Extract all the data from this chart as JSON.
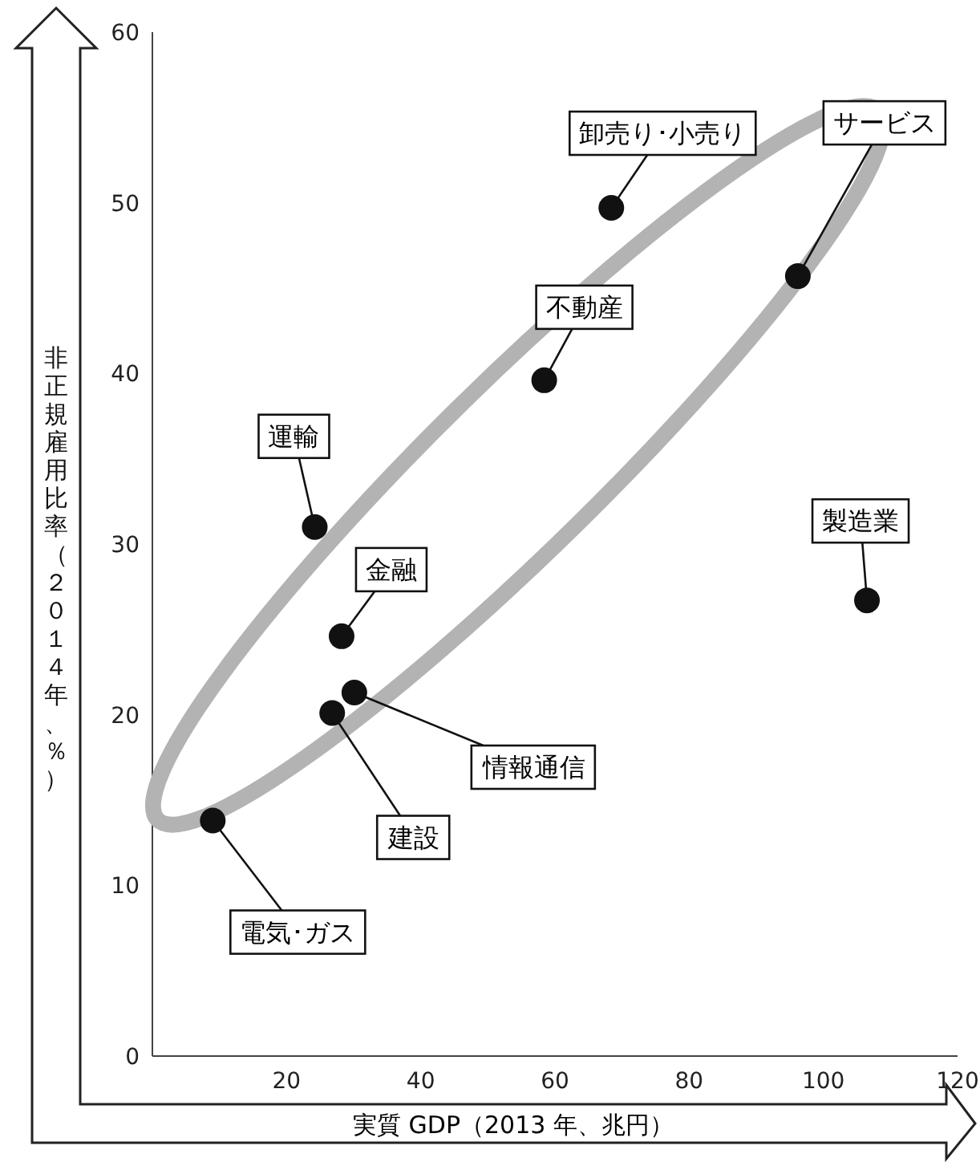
{
  "chart_data": {
    "type": "scatter",
    "xlabel": "実質 GDP（2013 年、兆円）",
    "ylabel": "非正規雇用比率（２０１４年、％）",
    "x": [
      9,
      26.8,
      30.1,
      28.2,
      24.2,
      58.4,
      68.4,
      96.2,
      106.5
    ],
    "series": [
      {
        "color": "#111111",
        "values": [
          13.8,
          20.1,
          21.3,
          24.6,
          31.0,
          39.6,
          49.7,
          45.7,
          26.7
        ]
      }
    ],
    "xlim": [
      0,
      120
    ],
    "ylim": [
      0,
      60
    ],
    "xticks": [
      20,
      40,
      60,
      80,
      100,
      120
    ],
    "yticks": [
      0,
      10,
      20,
      30,
      40,
      50,
      60
    ],
    "marker": "circle",
    "grid": false,
    "annotations": [
      {
        "text": "電気･ガス",
        "x": 9,
        "y": 13.8
      },
      {
        "text": "建設",
        "x": 26.8,
        "y": 20.1
      },
      {
        "text": "情報通信",
        "x": 30.1,
        "y": 21.3
      },
      {
        "text": "金融",
        "x": 28.2,
        "y": 24.6
      },
      {
        "text": "運輸",
        "x": 24.2,
        "y": 31.0
      },
      {
        "text": "不動産",
        "x": 58.4,
        "y": 39.6
      },
      {
        "text": "卸売り･小売り",
        "x": 68.4,
        "y": 49.7
      },
      {
        "text": "サービス",
        "x": 96.2,
        "y": 45.7
      },
      {
        "text": "製造業",
        "x": 106.5,
        "y": 26.7
      }
    ]
  }
}
